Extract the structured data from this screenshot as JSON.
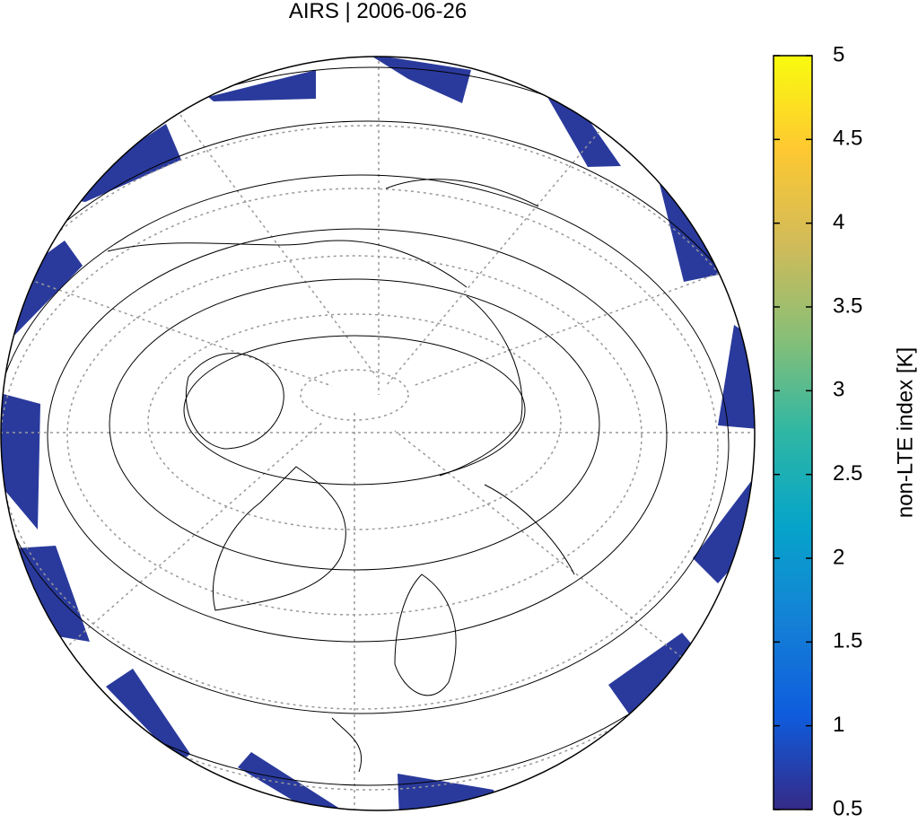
{
  "map": {
    "title": "AIRS | 2006-06-26",
    "colorbar": {
      "label": "non-LTE index [K]",
      "range": [
        0.5,
        5
      ],
      "ticks": [
        0.5,
        1,
        1.5,
        2,
        2.5,
        3,
        3.5,
        4,
        4.5,
        5
      ],
      "colors": [
        "#352a87",
        "#0f5cdd",
        "#1481d6",
        "#06a4ca",
        "#2eb7a4",
        "#87bf77",
        "#d1bb59",
        "#fec832",
        "#f9fb0e"
      ]
    }
  }
}
